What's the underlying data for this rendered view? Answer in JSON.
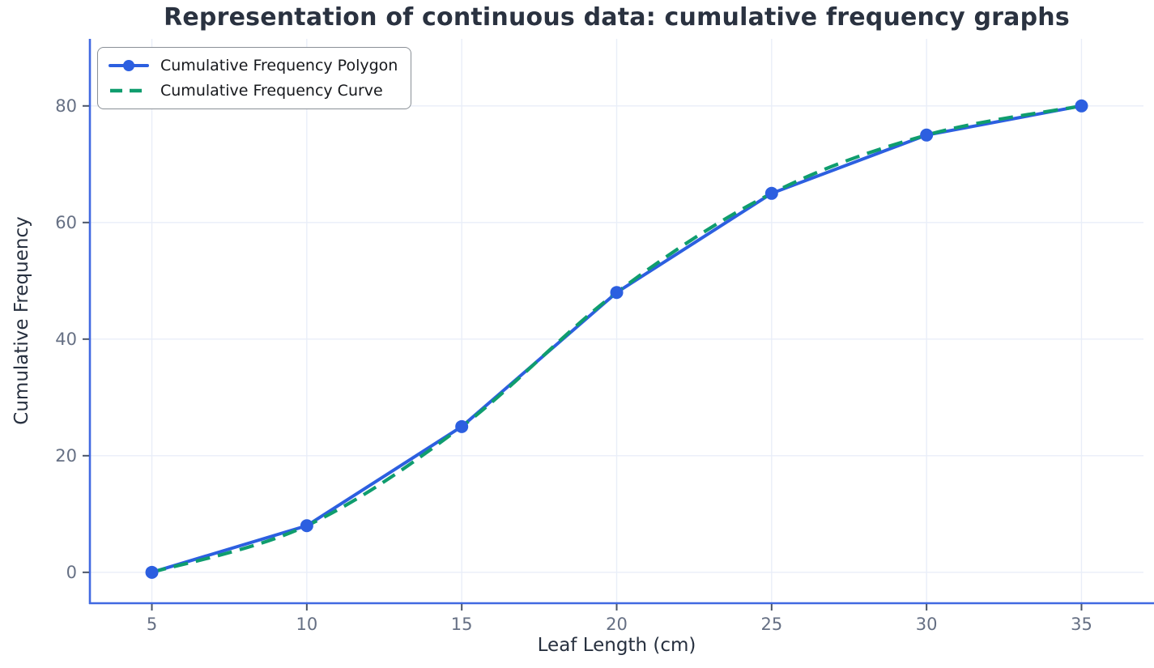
{
  "chart_data": {
    "type": "line",
    "title": "Representation of continuous data: cumulative frequency graphs",
    "xlabel": "Leaf Length (cm)",
    "ylabel": "Cumulative Frequency",
    "x": [
      5,
      10,
      15,
      20,
      25,
      30,
      35
    ],
    "series": [
      {
        "name": "Cumulative Frequency Polygon",
        "values": [
          0,
          8,
          25,
          48,
          65,
          75,
          80
        ],
        "color": "#2c5fe0",
        "line_style": "solid",
        "marker": "circle"
      },
      {
        "name": "Cumulative Frequency Curve",
        "values": [
          0,
          8,
          25,
          48,
          65,
          75,
          80
        ],
        "color": "#0f9d6e",
        "line_style": "dashed",
        "marker": "none"
      }
    ],
    "xticks": [
      5,
      10,
      15,
      20,
      25,
      30,
      35
    ],
    "yticks": [
      0,
      20,
      40,
      60,
      80
    ],
    "xlim": [
      3,
      37
    ],
    "ylim": [
      -5.3,
      91.5
    ],
    "grid": true,
    "legend_position": "upper-left",
    "colors": {
      "spine": "#4169e1",
      "grid": "#e9eef8",
      "tick_mark": "#4a5568",
      "tick_label": "#667084",
      "title": "#2a3240",
      "axis_label": "#27303f",
      "legend_border": "#8a9097",
      "legend_text": "#16181c",
      "background": "#ffffff"
    }
  }
}
